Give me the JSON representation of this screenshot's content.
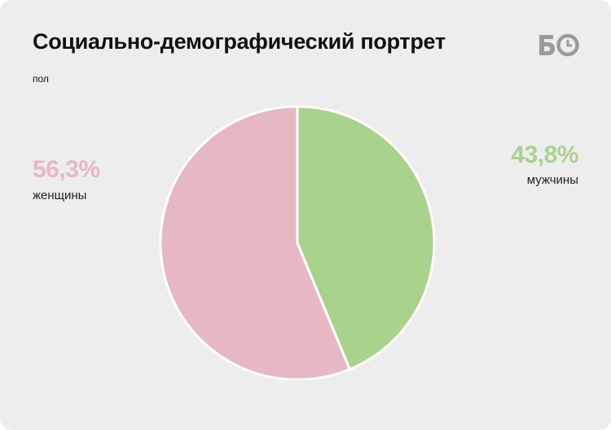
{
  "header": {
    "title": "Социально-демографический портрет",
    "subtitle": "пол",
    "logo_text": "БО"
  },
  "colors": {
    "background": "#ededed",
    "women": "#e5b8c4",
    "men": "#a9d28d",
    "logo": "#9b9b9b"
  },
  "chart_data": {
    "type": "pie",
    "title": "Социально-демографический портрет",
    "subtitle": "пол",
    "slices": [
      {
        "label": "мужчины",
        "value": 43.8,
        "display": "43,8%",
        "color": "#a9d28d"
      },
      {
        "label": "женщины",
        "value": 56.3,
        "display": "56,3%",
        "color": "#e5b8c4"
      }
    ],
    "start_angle_deg": 0,
    "direction": "clockwise",
    "slice_border_color": "#ffffff"
  }
}
